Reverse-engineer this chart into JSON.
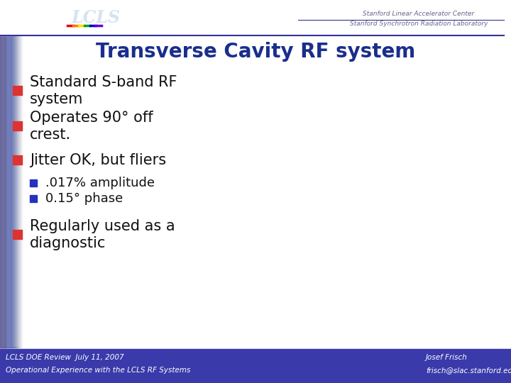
{
  "title": "Transverse Cavity RF system",
  "title_color": "#1a2e8c",
  "title_fontsize": 20,
  "bg_color": "#ffffff",
  "left_bar_color": "#8899cc",
  "header_bg": "#ffffff",
  "footer_bg": "#3a3aaa",
  "slide_bg": "#ffffff",
  "bullet_items": [
    {
      "text": "Standard S-band RF\nsystem",
      "level": 1,
      "bullet_color": "#dd3333"
    },
    {
      "text": "Operates 90° off\ncrest.",
      "level": 1,
      "bullet_color": "#dd3333"
    },
    {
      "text": "Jitter OK, but fliers",
      "level": 1,
      "bullet_color": "#dd3333"
    },
    {
      "text": ".017% amplitude",
      "level": 2,
      "bullet_color": "#2233bb"
    },
    {
      "text": "0.15° phase",
      "level": 2,
      "bullet_color": "#2233bb"
    },
    {
      "text": "Regularly used as a\ndiagnostic",
      "level": 1,
      "bullet_color": "#dd3333"
    }
  ],
  "footer_left1": "LCLS DOE Review  July 11, 2007",
  "footer_left2": "Operational Experience with the LCLS RF Systems",
  "footer_right1": "Josef Frisch",
  "footer_right2": "frisch@slac.stanford.edu",
  "footer_text_color": "#ffffff",
  "header_line_color": "#333399",
  "slac_text1": "Stanford Linear Accelerator Center",
  "slac_text2": "Stanford Synchrotron Radiation Laboratory",
  "slac_text_color": "#666688",
  "plot1_line_color": "#aa2222",
  "plot2_line_color": "#2233bb",
  "plot3_bg": "#000055"
}
